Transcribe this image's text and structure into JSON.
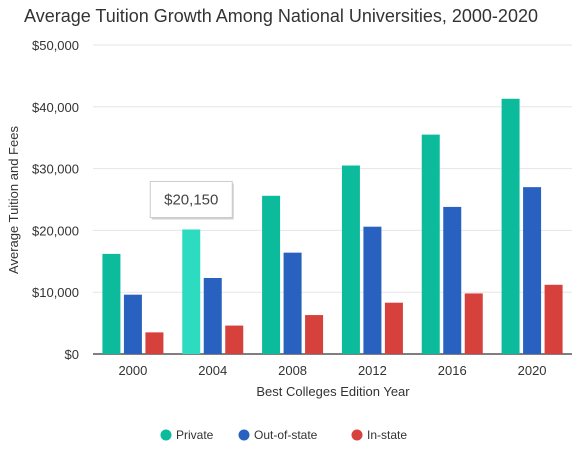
{
  "chart_data": {
    "type": "bar",
    "title": "Average Tuition Growth Among National Universities, 2000-2020",
    "xlabel": "Best Colleges Edition Year",
    "ylabel": "Average Tuition and Fees",
    "categories": [
      "2000",
      "2004",
      "2008",
      "2012",
      "2016",
      "2020"
    ],
    "y_ticks": [
      "$0",
      "$10,000",
      "$20,000",
      "$30,000",
      "$40,000",
      "$50,000"
    ],
    "ylim": [
      0,
      50000
    ],
    "grid": true,
    "legend_position": "bottom",
    "series": [
      {
        "name": "Private",
        "color": "#0cbb9c",
        "values": [
          16200,
          20150,
          25600,
          30500,
          35500,
          41300
        ]
      },
      {
        "name": "Out-of-state",
        "color": "#2861c0",
        "values": [
          9600,
          12300,
          16400,
          20600,
          23800,
          27000
        ]
      },
      {
        "name": "In-state",
        "color": "#d6413b",
        "values": [
          3500,
          4600,
          6300,
          8300,
          9800,
          11200
        ]
      }
    ],
    "highlight": {
      "series_index": 0,
      "category_index": 1,
      "color": "#2ddcc0",
      "label": "$20,150"
    }
  }
}
